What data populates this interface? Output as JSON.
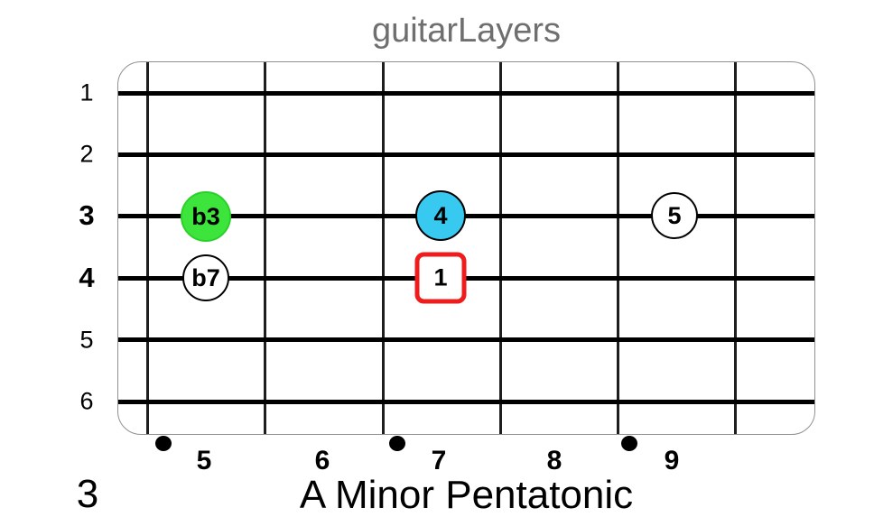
{
  "app_title": "guitarLayers",
  "footer": {
    "position_number": "3",
    "scale_name": "A Minor Pentatonic"
  },
  "colors": {
    "note_green": "#3ce43c",
    "note_blue": "#38c9f0",
    "note_white": "#ffffff",
    "root_square_red": "#ee1c1c",
    "title_gray": "#6f6f6f",
    "string_black": "#000000",
    "fret_gray": "#1e1e1e",
    "board_border_gray": "#909090"
  },
  "fretboard": {
    "string_labels": [
      {
        "label": "1",
        "bold": false
      },
      {
        "label": "2",
        "bold": false
      },
      {
        "label": "3",
        "bold": true
      },
      {
        "label": "4",
        "bold": true
      },
      {
        "label": "5",
        "bold": false
      },
      {
        "label": "6",
        "bold": false
      }
    ],
    "fret_labels": [
      "5",
      "6",
      "7",
      "8",
      "9"
    ],
    "inlay_dot_frets": [
      "5",
      "7",
      "9"
    ],
    "notes": [
      {
        "label": "b3",
        "string": "3",
        "fret": "5",
        "style": "green-circle"
      },
      {
        "label": "b7",
        "string": "4",
        "fret": "5",
        "style": "white-circle"
      },
      {
        "label": "4",
        "string": "3",
        "fret": "7",
        "style": "blue-circle"
      },
      {
        "label": "1",
        "string": "4",
        "fret": "7",
        "style": "red-square-root"
      },
      {
        "label": "5",
        "string": "3",
        "fret": "9",
        "style": "white-circle"
      }
    ]
  }
}
